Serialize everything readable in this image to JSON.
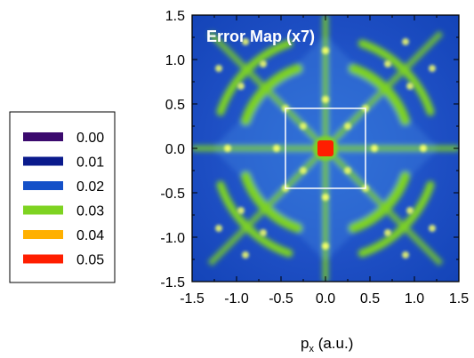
{
  "chart_data": {
    "type": "heatmap",
    "title": "Error  Map (x7)",
    "xlabel_main": "p",
    "xlabel_sub": "x",
    "xlabel_unit": " (a.u.)",
    "ylabel": "",
    "xlim": [
      -1.5,
      1.5
    ],
    "ylim": [
      -1.5,
      1.5
    ],
    "x_ticks": [
      "-1.5",
      "-1.0",
      "-0.5",
      "0.0",
      "0.5",
      "1.0",
      "1.5"
    ],
    "y_ticks": [
      "1.5",
      "1.0",
      "0.5",
      "0.0",
      "-0.5",
      "-1.0",
      "-1.5"
    ],
    "x_tick_values": [
      -1.5,
      -1.0,
      -0.5,
      0.0,
      0.5,
      1.0,
      1.5
    ],
    "y_tick_values": [
      1.5,
      1.0,
      0.5,
      0.0,
      -0.5,
      -1.0,
      -1.5
    ],
    "colorscale": [
      {
        "value": "0.00",
        "color": "#3b0a6e"
      },
      {
        "value": "0.01",
        "color": "#0a1a8c"
      },
      {
        "value": "0.02",
        "color": "#1450c8"
      },
      {
        "value": "0.03",
        "color": "#7ed321"
      },
      {
        "value": "0.04",
        "color": "#ffb000"
      },
      {
        "value": "0.05",
        "color": "#ff1e00"
      }
    ],
    "inset_box": {
      "x": [
        -0.45,
        0.45
      ],
      "y": [
        -0.45,
        0.45
      ]
    },
    "legend_position": "left"
  }
}
